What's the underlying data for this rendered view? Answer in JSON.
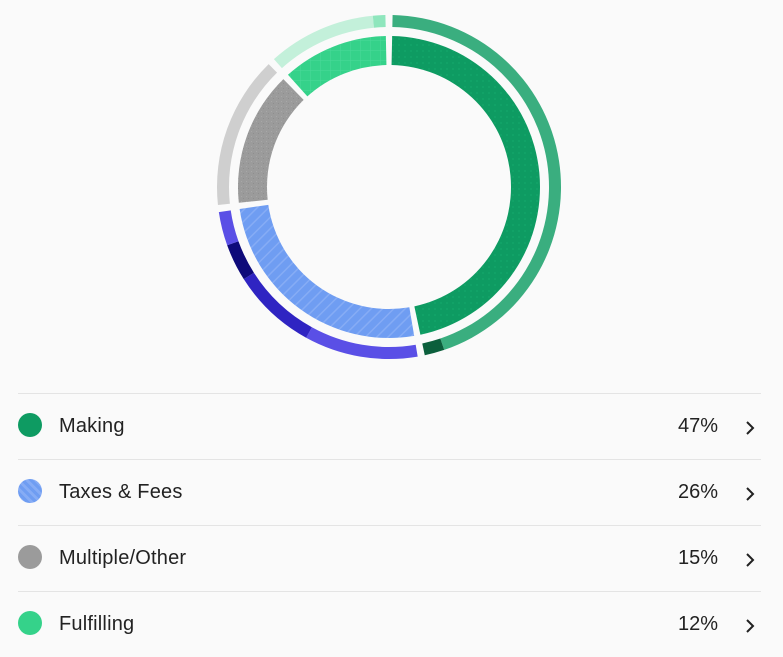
{
  "chart_data": {
    "type": "donut",
    "inner_ring": [
      {
        "name": "Making",
        "value": 47,
        "color": "#0e9b62",
        "pattern": "dots"
      },
      {
        "name": "Taxes & Fees",
        "value": 26,
        "color": "#6f9df2",
        "pattern": "stripes"
      },
      {
        "name": "Multiple/Other",
        "value": 15,
        "color": "#9b9b9b",
        "pattern": "speckle"
      },
      {
        "name": "Fulfilling",
        "value": 12,
        "color": "#35d28a",
        "pattern": "grid"
      }
    ],
    "outer_ring": [
      {
        "group": "Making",
        "value": 44.8,
        "color": "#3aae7f"
      },
      {
        "group": "Making",
        "value": 2.2,
        "color": "#0b5f3c"
      },
      {
        "group": "Taxes & Fees",
        "value": 11,
        "color": "#5a4fe6"
      },
      {
        "group": "Taxes & Fees",
        "value": 8,
        "color": "#2f24c2"
      },
      {
        "group": "Taxes & Fees",
        "value": 3.5,
        "color": "#0e0a7a"
      },
      {
        "group": "Taxes & Fees",
        "value": 3.5,
        "color": "#5a4fe6"
      },
      {
        "group": "Multiple/Other",
        "value": 15,
        "color": "#cfcfcf"
      },
      {
        "group": "Fulfilling",
        "value": 10.5,
        "color": "#c3f0da"
      },
      {
        "group": "Fulfilling",
        "value": 1.5,
        "color": "#8fe6bd"
      }
    ]
  },
  "legend": {
    "items": [
      {
        "label": "Making",
        "percent": "47%",
        "color": "#0e9b62"
      },
      {
        "label": "Taxes & Fees",
        "percent": "26%",
        "color": "#6f9df2"
      },
      {
        "label": "Multiple/Other",
        "percent": "15%",
        "color": "#9b9b9b"
      },
      {
        "label": "Fulfilling",
        "percent": "12%",
        "color": "#35d28a"
      }
    ]
  }
}
